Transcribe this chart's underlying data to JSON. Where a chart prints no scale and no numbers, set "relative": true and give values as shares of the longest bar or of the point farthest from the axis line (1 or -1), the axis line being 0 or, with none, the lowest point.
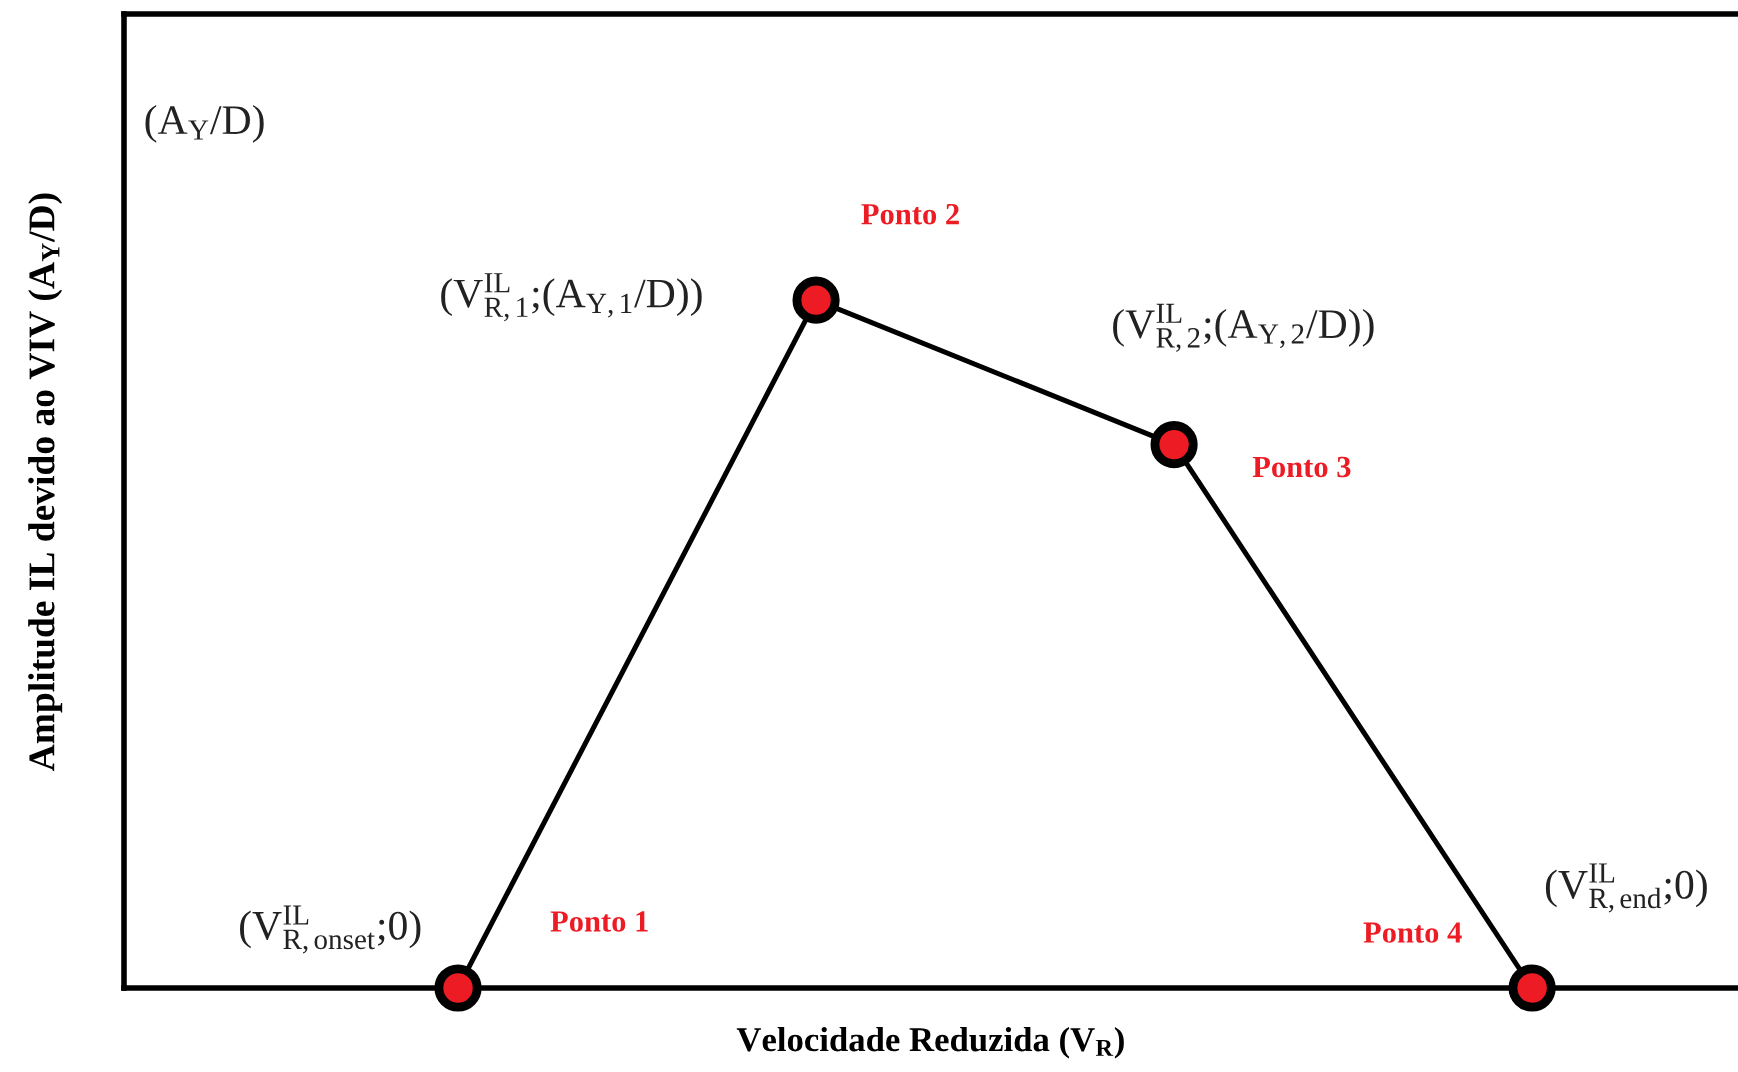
{
  "chart_data": {
    "type": "line",
    "xlabel": "Velocidade Reduzida (V$_{R}$)",
    "ylabel": "Amplitude IL devido ao VIV (A$_{Y}$/D)",
    "relative": true,
    "categories": [
      null,
      null,
      null,
      null
    ],
    "series": [
      {
        "color": "#000000",
        "colors": [
          "#ed1c24",
          "#ed1c24",
          "#ed1c24",
          "#ed1c24"
        ],
        "values": [
          0,
          1,
          0.79,
          0
        ]
      }
    ],
    "marker": "circle",
    "line_style": "solid",
    "grid": false,
    "annotations": [
      "Ponto 1",
      "Ponto 2",
      "Ponto 3",
      "Ponto 4",
      "(V$^{IL}$$_{R,onset}$;0)",
      "(V$^{IL}$$_{R,1}$;(A$_{Y,1}$/D))",
      "(V$^{IL}$$_{R,2}$;(A$_{Y,2}$/D))",
      "(V$^{IL}$$_{R,end}$;0)",
      "(A$_{Y}$/D)"
    ]
  }
}
